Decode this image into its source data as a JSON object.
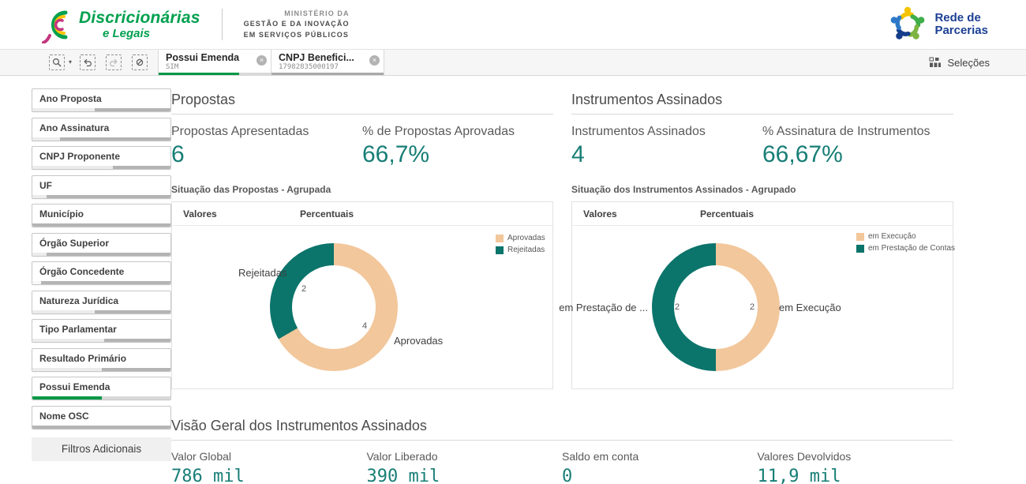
{
  "brand": {
    "line1": "Discricionárias",
    "line2": "e Legais"
  },
  "ministry": {
    "line1": "MINISTÉRIO DA",
    "line2": "GESTÃO E DA INOVAÇÃO",
    "line3": "EM SERVIÇOS PÚBLICOS"
  },
  "partner_logo": {
    "line1": "Rede de",
    "line2": "Parcerias"
  },
  "toolbar": {
    "selections_label": "Seleções",
    "chips": [
      {
        "title": "Possui Emenda",
        "value": "SIM",
        "close": "×",
        "bar_fill": 72,
        "bar_color": "#009845",
        "bar_track": "#d9d9d9"
      },
      {
        "title": "CNPJ Benefici...",
        "value": "17982835000197",
        "close": "×",
        "bar_fill": 100,
        "bar_color": "#a9a9a9",
        "bar_track": "#a9a9a9"
      }
    ]
  },
  "sidebar": {
    "items": [
      {
        "label": "Ano Proposta",
        "bar": [
          {
            "pct": 45,
            "color": "#ececec"
          },
          {
            "pct": 55,
            "color": "#b4b4b4"
          }
        ]
      },
      {
        "label": "Ano Assinatura",
        "bar": [
          {
            "pct": 20,
            "color": "#ececec"
          },
          {
            "pct": 80,
            "color": "#b4b4b4"
          }
        ]
      },
      {
        "label": "CNPJ Proponente",
        "bar": [
          {
            "pct": 58,
            "color": "#ececec"
          },
          {
            "pct": 42,
            "color": "#b4b4b4"
          }
        ]
      },
      {
        "label": "UF",
        "bar": [
          {
            "pct": 10,
            "color": "#ececec"
          },
          {
            "pct": 90,
            "color": "#b4b4b4"
          }
        ]
      },
      {
        "label": "Município",
        "bar": [
          {
            "pct": 100,
            "color": "#b4b4b4"
          }
        ]
      },
      {
        "label": "Órgão Superior",
        "bar": [
          {
            "pct": 10,
            "color": "#ececec"
          },
          {
            "pct": 90,
            "color": "#b4b4b4"
          }
        ]
      },
      {
        "label": "Órgão Concedente",
        "bar": [
          {
            "pct": 6,
            "color": "#f8f8f8"
          },
          {
            "pct": 94,
            "color": "#b4b4b4"
          }
        ]
      },
      {
        "label": "Natureza Jurídica",
        "bar": [
          {
            "pct": 45,
            "color": "#ececec"
          },
          {
            "pct": 55,
            "color": "#b4b4b4"
          }
        ]
      },
      {
        "label": "Tipo Parlamentar",
        "bar": [
          {
            "pct": 52,
            "color": "#ececec"
          },
          {
            "pct": 48,
            "color": "#b4b4b4"
          }
        ]
      },
      {
        "label": "Resultado Primário",
        "bar": [
          {
            "pct": 50,
            "color": "#ececec"
          },
          {
            "pct": 50,
            "color": "#b4b4b4"
          }
        ]
      },
      {
        "label": "Possui Emenda",
        "bar": [
          {
            "pct": 50,
            "color": "#009845"
          },
          {
            "pct": 50,
            "color": "#d9d9d9"
          }
        ]
      },
      {
        "label": "Nome OSC",
        "bar": [
          {
            "pct": 100,
            "color": "#b4b4b4"
          }
        ]
      }
    ],
    "more_filters_label": "Filtros Adicionais"
  },
  "sections": {
    "propostas": {
      "title": "Propostas",
      "kpis": [
        {
          "label": "Propostas Apresentadas",
          "value": "6"
        },
        {
          "label": "% de Propostas Aprovadas",
          "value": "66,7%"
        }
      ]
    },
    "instrumentos": {
      "title": "Instrumentos Assinados",
      "kpis": [
        {
          "label": "Instrumentos Assinados",
          "value": "4"
        },
        {
          "label": "% Assinatura de Instrumentos",
          "value": "66,67%"
        }
      ]
    },
    "visao_geral": {
      "title": "Visão Geral dos Instrumentos Assinados",
      "kpis": [
        {
          "label": "Valor Global",
          "value": "786 mil"
        },
        {
          "label": "Valor Liberado",
          "value": "390 mil"
        },
        {
          "label": "Saldo em conta",
          "value": "0"
        },
        {
          "label": "Valores Devolvidos",
          "value": "11,9 mil"
        }
      ]
    }
  },
  "chart_data": [
    {
      "type": "donut",
      "title": "Situação das Propostas - Agrupada",
      "tabs": [
        "Valores",
        "Percentuais"
      ],
      "series": [
        {
          "name": "Aprovadas",
          "value": 4,
          "color": "#F2C79B"
        },
        {
          "name": "Rejeitadas",
          "value": 2,
          "color": "#0B746B"
        }
      ],
      "callouts": {
        "left": "Rejeitadas",
        "right": "Aprovadas",
        "left_value": "2",
        "right_value": "4"
      },
      "legend_position": "top-right"
    },
    {
      "type": "donut",
      "title": "Situação dos Instrumentos Assinados - Agrupado",
      "tabs": [
        "Valores",
        "Percentuais"
      ],
      "series": [
        {
          "name": "em Execução",
          "value": 2,
          "color": "#F2C79B"
        },
        {
          "name": "em Prestação de Contas",
          "value": 2,
          "color": "#0B746B"
        }
      ],
      "callouts": {
        "left": "em Prestação de ...",
        "right": "em Execução",
        "left_value": "2",
        "right_value": "2"
      },
      "legend_position": "top-right"
    }
  ],
  "colors": {
    "accent_teal": "#177E76",
    "donut_teal": "#0B746B",
    "donut_peach": "#F2C79B",
    "selected_green": "#009845",
    "brand_green": "#00A04E",
    "partner_navy": "#1C3F94"
  }
}
